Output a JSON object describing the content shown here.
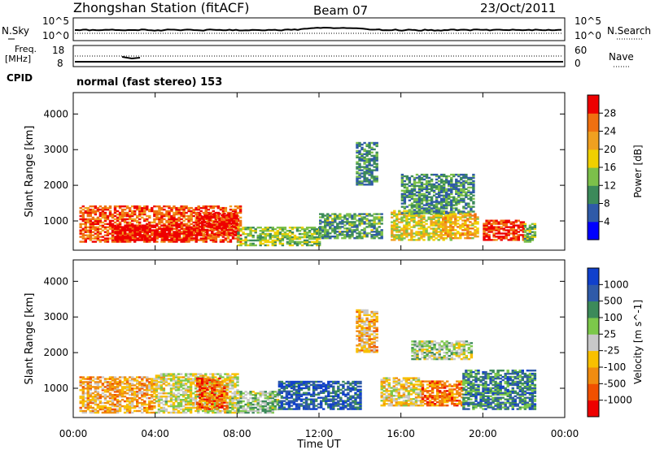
{
  "header": {
    "station": "Zhongshan Station (fitACF)",
    "beam": "Beam 07",
    "date": "23/Oct/2011"
  },
  "noise_panel": {
    "left_label": "N.Sky",
    "left_ticks": [
      "10^5",
      "10^0"
    ],
    "right_ticks": [
      "10^5",
      "10^0"
    ],
    "right_label": "N.Search"
  },
  "freq_panel": {
    "left_label_top": "Freq.",
    "left_label_bottom": "[MHz]",
    "left_ticks": [
      "18",
      "8"
    ],
    "right_ticks": [
      "60",
      "0"
    ],
    "right_label": "Nave"
  },
  "cpid": {
    "label": "CPID",
    "program": "normal (fast stereo) 153"
  },
  "colors": {
    "power_scale": [
      "#0000ff",
      "#2f5aa8",
      "#3c8a5a",
      "#7cc04a",
      "#f0d000",
      "#f0a020",
      "#f07010",
      "#ee0000"
    ],
    "velocity_scale": [
      "#ee0000",
      "#f05000",
      "#f08c10",
      "#f8c000",
      "#c8c8c8",
      "#7cc84a",
      "#3c8a5a",
      "#2f5aa8",
      "#1040cc"
    ]
  },
  "chart_data": [
    {
      "type": "heatmap",
      "panel": "power",
      "xlabel": "Time UT",
      "ylabel": "Slant Range [km]",
      "x_ticks": [
        "00:00",
        "04:00",
        "08:00",
        "12:00",
        "16:00",
        "20:00",
        "00:00"
      ],
      "x_range_hours": [
        0,
        24
      ],
      "y_ticks": [
        "1000",
        "2000",
        "3000",
        "4000"
      ],
      "y_range_km": [
        180,
        4600
      ],
      "colorbar_label": "Power [dB]",
      "colorbar_ticks": [
        "28",
        "24",
        "20",
        "16",
        "12",
        "8",
        "4"
      ],
      "colorbar_range": [
        0,
        32
      ],
      "echo_regions": [
        {
          "t0": 0.3,
          "t1": 8.2,
          "r0": 400,
          "r1": 1400,
          "level": 0.85
        },
        {
          "t0": 2.0,
          "t1": 6.0,
          "r0": 450,
          "r1": 900,
          "level": 1.0
        },
        {
          "t0": 6.0,
          "t1": 8.0,
          "r0": 600,
          "r1": 1200,
          "level": 0.95
        },
        {
          "t0": 8.0,
          "t1": 12.0,
          "r0": 300,
          "r1": 800,
          "level": 0.45
        },
        {
          "t0": 12.0,
          "t1": 15.0,
          "r0": 500,
          "r1": 1200,
          "level": 0.35
        },
        {
          "t0": 13.8,
          "t1": 14.8,
          "r0": 2000,
          "r1": 3200,
          "level": 0.3
        },
        {
          "t0": 15.5,
          "t1": 18.5,
          "r0": 450,
          "r1": 1300,
          "level": 0.55
        },
        {
          "t0": 16.0,
          "t1": 19.5,
          "r0": 1200,
          "r1": 2300,
          "level": 0.3
        },
        {
          "t0": 18.0,
          "t1": 19.8,
          "r0": 500,
          "r1": 1200,
          "level": 0.65
        },
        {
          "t0": 20.0,
          "t1": 22.0,
          "r0": 450,
          "r1": 1000,
          "level": 0.9
        },
        {
          "t0": 22.0,
          "t1": 22.6,
          "r0": 400,
          "r1": 900,
          "level": 0.4
        }
      ]
    },
    {
      "type": "heatmap",
      "panel": "velocity",
      "xlabel": "Time UT",
      "ylabel": "Slant Range [km]",
      "x_ticks": [
        "00:00",
        "04:00",
        "08:00",
        "12:00",
        "16:00",
        "20:00",
        "00:00"
      ],
      "x_range_hours": [
        0,
        24
      ],
      "y_ticks": [
        "1000",
        "2000",
        "3000",
        "4000"
      ],
      "y_range_km": [
        180,
        4600
      ],
      "colorbar_label": "Velocity [m s^-1]",
      "colorbar_ticks": [
        "1000",
        "500",
        "100",
        "25",
        "-25",
        "-100",
        "-500",
        "-1000"
      ],
      "echo_regions": [
        {
          "t0": 0.3,
          "t1": 4.0,
          "r0": 300,
          "r1": 1300,
          "level": 0.35
        },
        {
          "t0": 4.0,
          "t1": 8.0,
          "r0": 300,
          "r1": 1400,
          "level": 0.5
        },
        {
          "t0": 6.0,
          "t1": 7.5,
          "r0": 400,
          "r1": 1300,
          "level": 0.2
        },
        {
          "t0": 8.0,
          "t1": 10.0,
          "r0": 300,
          "r1": 900,
          "level": 0.6
        },
        {
          "t0": 10.0,
          "t1": 14.0,
          "r0": 400,
          "r1": 1200,
          "level": 0.85
        },
        {
          "t0": 13.8,
          "t1": 14.8,
          "r0": 2000,
          "r1": 3200,
          "level": 0.35
        },
        {
          "t0": 15.0,
          "t1": 17.0,
          "r0": 500,
          "r1": 1300,
          "level": 0.45
        },
        {
          "t0": 16.5,
          "t1": 19.5,
          "r0": 1800,
          "r1": 2300,
          "level": 0.55
        },
        {
          "t0": 17.0,
          "t1": 19.0,
          "r0": 500,
          "r1": 1200,
          "level": 0.25
        },
        {
          "t0": 19.0,
          "t1": 22.5,
          "r0": 400,
          "r1": 1500,
          "level": 0.75
        }
      ]
    }
  ]
}
